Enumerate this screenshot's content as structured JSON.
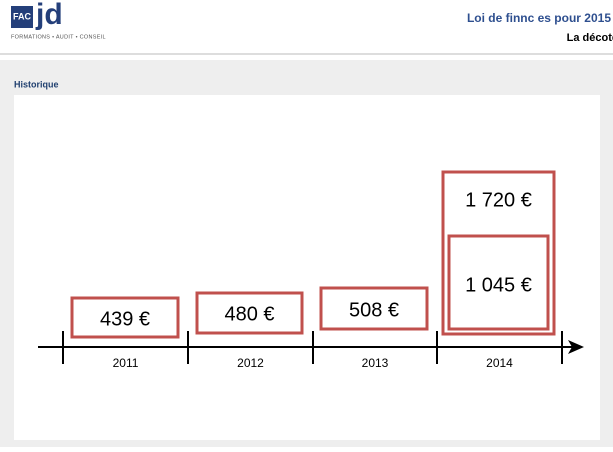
{
  "header": {
    "logo": "FAC",
    "logo_brand": "jd",
    "tagline": "FORMATIONS • AUDIT • CONSEIL",
    "title": "Loi de finnc es pour 2015",
    "subtitle": "La décote"
  },
  "section": "Historique",
  "timeline": [
    {
      "year": "2011",
      "amounts": [
        "439 €"
      ]
    },
    {
      "year": "2012",
      "amounts": [
        "480 €"
      ]
    },
    {
      "year": "2013",
      "amounts": [
        "508 €"
      ]
    },
    {
      "year": "2014",
      "amounts": [
        "1 045 €",
        "1 720 €"
      ]
    }
  ]
}
